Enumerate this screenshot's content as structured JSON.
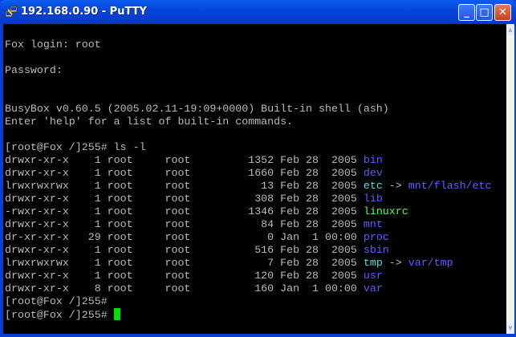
{
  "window": {
    "title": "192.168.0.90 - PuTTY",
    "minimize": "_",
    "maximize": "□",
    "close": "✕"
  },
  "colors": {
    "text": "#bbbbbb",
    "dir": "#5f5fff",
    "link": "#55e0e0",
    "exec": "#55ff55",
    "cursor": "#00e000"
  },
  "terminal": {
    "lines": [
      [
        {
          "t": "",
          "c": "text"
        }
      ],
      [
        {
          "t": "Fox login: root",
          "c": "text"
        }
      ],
      [
        {
          "t": "",
          "c": "text"
        }
      ],
      [
        {
          "t": "Password:",
          "c": "text"
        }
      ],
      [
        {
          "t": "",
          "c": "text"
        }
      ],
      [
        {
          "t": "",
          "c": "text"
        }
      ],
      [
        {
          "t": "BusyBox v0.60.5 (2005.02.11-19:09+0000) Built-in shell (ash)",
          "c": "text"
        }
      ],
      [
        {
          "t": "Enter 'help' for a list of built-in commands.",
          "c": "text"
        }
      ],
      [
        {
          "t": "",
          "c": "text"
        }
      ],
      [
        {
          "t": "[root@Fox /]255# ls -l",
          "c": "text"
        }
      ],
      [
        {
          "t": "drwxr-xr-x    1 root     root         1352 Feb 28  2005 ",
          "c": "text"
        },
        {
          "t": "bin",
          "c": "dir"
        }
      ],
      [
        {
          "t": "drwxr-xr-x    1 root     root         1660 Feb 28  2005 ",
          "c": "text"
        },
        {
          "t": "dev",
          "c": "dir"
        }
      ],
      [
        {
          "t": "lrwxrwxrwx    1 root     root           13 Feb 28  2005 ",
          "c": "text"
        },
        {
          "t": "etc",
          "c": "link"
        },
        {
          "t": " -> ",
          "c": "text"
        },
        {
          "t": "mnt/flash/etc",
          "c": "dir"
        }
      ],
      [
        {
          "t": "drwxr-xr-x    1 root     root          308 Feb 28  2005 ",
          "c": "text"
        },
        {
          "t": "lib",
          "c": "dir"
        }
      ],
      [
        {
          "t": "-rwxr-xr-x    1 root     root         1346 Feb 28  2005 ",
          "c": "text"
        },
        {
          "t": "linuxrc",
          "c": "exec"
        }
      ],
      [
        {
          "t": "drwxr-xr-x    1 root     root           84 Feb 28  2005 ",
          "c": "text"
        },
        {
          "t": "mnt",
          "c": "dir"
        }
      ],
      [
        {
          "t": "dr-xr-xr-x   29 root     root            0 Jan  1 00:00 ",
          "c": "text"
        },
        {
          "t": "proc",
          "c": "dir"
        }
      ],
      [
        {
          "t": "drwxr-xr-x    1 root     root          516 Feb 28  2005 ",
          "c": "text"
        },
        {
          "t": "sbin",
          "c": "dir"
        }
      ],
      [
        {
          "t": "lrwxrwxrwx    1 root     root            7 Feb 28  2005 ",
          "c": "text"
        },
        {
          "t": "tmp",
          "c": "link"
        },
        {
          "t": " -> ",
          "c": "text"
        },
        {
          "t": "var/tmp",
          "c": "dir"
        }
      ],
      [
        {
          "t": "drwxr-xr-x    1 root     root          120 Feb 28  2005 ",
          "c": "text"
        },
        {
          "t": "usr",
          "c": "dir"
        }
      ],
      [
        {
          "t": "drwxr-xr-x    8 root     root          160 Jan  1 00:00 ",
          "c": "text"
        },
        {
          "t": "var",
          "c": "dir"
        }
      ],
      [
        {
          "t": "[root@Fox /]255#",
          "c": "text"
        }
      ],
      [
        {
          "t": "[root@Fox /]255# ",
          "c": "text"
        }
      ]
    ]
  }
}
